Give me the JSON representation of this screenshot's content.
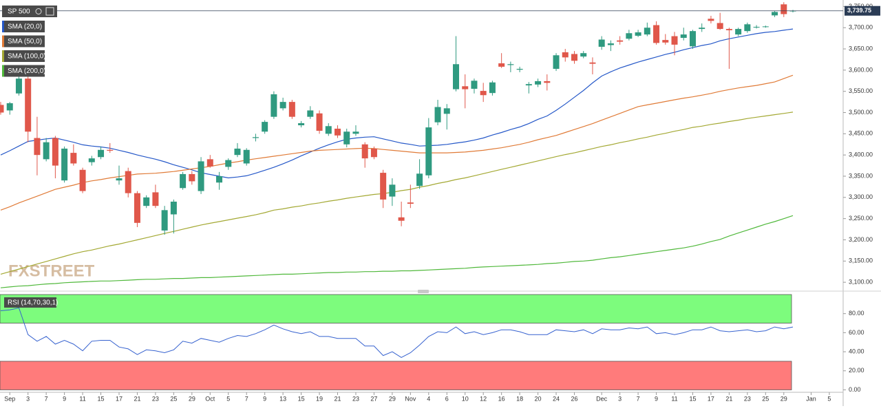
{
  "chart_data": [
    {
      "type": "candlestick",
      "title": "SP 500",
      "watermark": "FXSTREET",
      "up_color": "#2f9a80",
      "down_color": "#e0574a",
      "categories": [
        null,
        "Sep",
        null,
        "3",
        null,
        "7",
        null,
        "9",
        null,
        "11",
        null,
        "15",
        null,
        "17",
        null,
        "21",
        null,
        "23",
        null,
        "25",
        null,
        "29",
        null,
        "Oct",
        null,
        "5",
        null,
        "7",
        null,
        "9",
        null,
        "13",
        null,
        "15",
        null,
        "19",
        null,
        "21",
        null,
        "23",
        null,
        "27",
        null,
        "29",
        null,
        "Nov",
        null,
        "4",
        null,
        "6",
        null,
        "10",
        null,
        "12",
        null,
        "16",
        null,
        "18",
        null,
        "20",
        null,
        "24",
        null,
        "26",
        null,
        null,
        "Dec",
        null,
        "3",
        null,
        "7",
        null,
        "9",
        null,
        "11",
        null,
        "15",
        null,
        "17",
        null,
        "21",
        null,
        "23",
        null,
        "25",
        null,
        "29",
        null,
        null,
        "Jan",
        null,
        "5"
      ],
      "open": [
        3518,
        3505,
        3545,
        3580,
        3440,
        3390,
        3440,
        3340,
        3405,
        3365,
        3383,
        3395,
        3412,
        3340,
        3362,
        3310,
        3280,
        3312,
        3222,
        3260,
        3322,
        3355,
        3315,
        3390,
        3335,
        3372,
        3400,
        3380,
        3440,
        3455,
        3490,
        3510,
        3525,
        3470,
        3490,
        3498,
        3450,
        3462,
        3425,
        3450,
        3425,
        3415,
        3358,
        3302,
        3253,
        3288,
        3327,
        3352,
        3477,
        3497,
        3555,
        3562,
        3556,
        3551,
        3546,
        3616,
        3612,
        3601,
        3564,
        3566,
        3574,
        3603,
        3642,
        3638,
        3632,
        3618,
        3655,
        3659,
        3670,
        3674,
        3681,
        3684,
        3706,
        3671,
        3680,
        3676,
        3656,
        3697,
        3721,
        3711,
        3697,
        3684,
        3692,
        3701,
        3702,
        3729,
        3755,
        3739,
        null,
        null,
        null,
        null
      ],
      "high": [
        3525,
        3525,
        3588,
        3590,
        3490,
        3440,
        3445,
        3420,
        3425,
        3370,
        3398,
        3420,
        3428,
        3375,
        3370,
        3315,
        3305,
        3330,
        3280,
        3295,
        3360,
        3362,
        3395,
        3400,
        3360,
        3392,
        3428,
        3416,
        3450,
        3482,
        3550,
        3535,
        3530,
        3480,
        3515,
        3505,
        3475,
        3470,
        3462,
        3470,
        3430,
        3420,
        3365,
        3345,
        3290,
        3330,
        3390,
        3487,
        3530,
        3520,
        3680,
        3590,
        3580,
        3570,
        3575,
        3640,
        3620,
        3608,
        3572,
        3580,
        3590,
        3640,
        3650,
        3645,
        3645,
        3630,
        3680,
        3670,
        3680,
        3695,
        3695,
        3712,
        3715,
        3685,
        3690,
        3700,
        3695,
        3710,
        3728,
        3735,
        3700,
        3700,
        3712,
        3706,
        3705,
        3740,
        3760,
        3742,
        null,
        null,
        null,
        null
      ],
      "low": [
        3495,
        3495,
        3540,
        3430,
        3352,
        3385,
        3345,
        3335,
        3375,
        3310,
        3375,
        3390,
        3405,
        3330,
        3300,
        3230,
        3275,
        3275,
        3212,
        3215,
        3318,
        3330,
        3308,
        3370,
        3318,
        3365,
        3395,
        3375,
        3432,
        3450,
        3485,
        3505,
        3485,
        3465,
        3485,
        3450,
        3445,
        3440,
        3418,
        3445,
        3370,
        3390,
        3275,
        3280,
        3232,
        3275,
        3320,
        3345,
        3470,
        3460,
        3550,
        3510,
        3545,
        3525,
        3540,
        3605,
        3595,
        3595,
        3545,
        3560,
        3552,
        3598,
        3620,
        3615,
        3628,
        3590,
        3648,
        3645,
        3660,
        3670,
        3678,
        3680,
        3660,
        3660,
        3635,
        3670,
        3650,
        3690,
        3710,
        3695,
        3603,
        3680,
        3688,
        3698,
        3700,
        3725,
        3725,
        3736,
        null,
        null,
        null,
        null
      ],
      "close": [
        3500,
        3522,
        3580,
        3455,
        3400,
        3430,
        3375,
        3415,
        3380,
        3315,
        3392,
        3412,
        3410,
        3345,
        3310,
        3240,
        3300,
        3280,
        3270,
        3290,
        3355,
        3338,
        3385,
        3373,
        3350,
        3388,
        3415,
        3412,
        3442,
        3478,
        3543,
        3525,
        3490,
        3475,
        3505,
        3457,
        3468,
        3446,
        3455,
        3455,
        3392,
        3395,
        3295,
        3330,
        3245,
        3285,
        3356,
        3465,
        3513,
        3510,
        3614,
        3555,
        3575,
        3541,
        3571,
        3608,
        3614,
        3603,
        3567,
        3574,
        3570,
        3635,
        3630,
        3622,
        3640,
        3615,
        3672,
        3663,
        3667,
        3687,
        3689,
        3700,
        3664,
        3665,
        3660,
        3684,
        3692,
        3700,
        3716,
        3697,
        3694,
        3697,
        3708,
        3702,
        3703,
        3737,
        3732,
        3740,
        null,
        null,
        null,
        null
      ],
      "series": [
        {
          "name": "SMA (20,0)",
          "color": "#2457c8",
          "values": [
            3400,
            3410,
            3421,
            3432,
            3435,
            3438,
            3440,
            3435,
            3430,
            3424,
            3421,
            3419,
            3416,
            3411,
            3406,
            3400,
            3395,
            3390,
            3384,
            3377,
            3371,
            3365,
            3358,
            3354,
            3350,
            3346,
            3348,
            3351,
            3357,
            3364,
            3371,
            3379,
            3388,
            3398,
            3407,
            3416,
            3424,
            3431,
            3437,
            3440,
            3442,
            3443,
            3438,
            3433,
            3428,
            3425,
            3421,
            3422,
            3423,
            3425,
            3428,
            3431,
            3435,
            3440,
            3447,
            3453,
            3460,
            3466,
            3474,
            3484,
            3492,
            3505,
            3520,
            3536,
            3552,
            3570,
            3586,
            3596,
            3605,
            3612,
            3619,
            3625,
            3631,
            3637,
            3642,
            3648,
            3653,
            3658,
            3662,
            3669,
            3674,
            3678,
            3682,
            3686,
            3689,
            3691,
            3694,
            3697,
            null,
            null,
            null,
            null
          ]
        },
        {
          "name": "SMA (50,0)",
          "color": "#e07a36",
          "values": [
            3270,
            3278,
            3287,
            3295,
            3303,
            3311,
            3319,
            3324,
            3329,
            3335,
            3339,
            3342,
            3346,
            3349,
            3352,
            3355,
            3356,
            3357,
            3359,
            3361,
            3364,
            3367,
            3370,
            3373,
            3377,
            3381,
            3384,
            3388,
            3391,
            3394,
            3397,
            3400,
            3403,
            3406,
            3409,
            3411,
            3412,
            3413,
            3414,
            3415,
            3416,
            3415,
            3413,
            3411,
            3409,
            3407,
            3405,
            3405,
            3405,
            3405,
            3406,
            3407,
            3409,
            3411,
            3414,
            3417,
            3421,
            3425,
            3430,
            3436,
            3441,
            3446,
            3453,
            3460,
            3467,
            3474,
            3482,
            3490,
            3498,
            3506,
            3514,
            3518,
            3522,
            3526,
            3530,
            3534,
            3537,
            3541,
            3545,
            3550,
            3554,
            3558,
            3561,
            3564,
            3568,
            3572,
            3580,
            3588,
            null,
            null,
            null,
            null
          ]
        },
        {
          "name": "SMA (100,0)",
          "color": "#a3a832",
          "values": [
            3119,
            3125,
            3131,
            3137,
            3143,
            3149,
            3155,
            3161,
            3167,
            3172,
            3176,
            3181,
            3186,
            3190,
            3195,
            3200,
            3205,
            3210,
            3215,
            3220,
            3225,
            3230,
            3235,
            3239,
            3243,
            3247,
            3251,
            3255,
            3259,
            3264,
            3270,
            3273,
            3277,
            3280,
            3284,
            3287,
            3291,
            3294,
            3298,
            3301,
            3304,
            3307,
            3309,
            3312,
            3316,
            3319,
            3324,
            3328,
            3333,
            3337,
            3342,
            3346,
            3351,
            3356,
            3361,
            3366,
            3371,
            3376,
            3381,
            3386,
            3391,
            3396,
            3401,
            3405,
            3410,
            3415,
            3420,
            3424,
            3429,
            3433,
            3438,
            3442,
            3447,
            3451,
            3456,
            3460,
            3465,
            3468,
            3472,
            3475,
            3479,
            3482,
            3486,
            3489,
            3492,
            3495,
            3498,
            3501,
            null,
            null,
            null,
            null
          ]
        },
        {
          "name": "SMA (200,0)",
          "color": "#4fb83a",
          "values": [
            3087,
            3089,
            3091,
            3092,
            3094,
            3096,
            3097,
            3099,
            3100,
            3101,
            3102,
            3103,
            3103,
            3104,
            3105,
            3106,
            3107,
            3107,
            3108,
            3109,
            3109,
            3110,
            3111,
            3111,
            3112,
            3113,
            3114,
            3115,
            3116,
            3117,
            3118,
            3119,
            3119,
            3120,
            3121,
            3122,
            3123,
            3123,
            3124,
            3124,
            3125,
            3125,
            3126,
            3126,
            3127,
            3127,
            3128,
            3129,
            3130,
            3131,
            3132,
            3133,
            3135,
            3136,
            3137,
            3138,
            3139,
            3140,
            3141,
            3142,
            3144,
            3145,
            3147,
            3149,
            3150,
            3152,
            3155,
            3158,
            3160,
            3163,
            3166,
            3169,
            3172,
            3175,
            3178,
            3181,
            3185,
            3190,
            3196,
            3201,
            3209,
            3216,
            3223,
            3230,
            3237,
            3243,
            3250,
            3257,
            null,
            null,
            null,
            null
          ]
        }
      ],
      "ylim": [
        3084,
        3762
      ],
      "yticks": [
        {
          "value": 3100,
          "label": "3,100.00"
        },
        {
          "value": 3150,
          "label": "3,150.00"
        },
        {
          "value": 3200,
          "label": "3,200.00"
        },
        {
          "value": 3250,
          "label": "3,250.00"
        },
        {
          "value": 3300,
          "label": "3,300.00"
        },
        {
          "value": 3350,
          "label": "3,350.00"
        },
        {
          "value": 3400,
          "label": "3,400.00"
        },
        {
          "value": 3450,
          "label": "3,450.00"
        },
        {
          "value": 3500,
          "label": "3,500.00"
        },
        {
          "value": 3550,
          "label": "3,550.00"
        },
        {
          "value": 3600,
          "label": "3,600.00"
        },
        {
          "value": 3650,
          "label": "3,650.00"
        },
        {
          "value": 3700,
          "label": "3,700.00"
        },
        {
          "value": 3750,
          "label": "3,750.00"
        }
      ],
      "last_price": {
        "value": 3739.75,
        "label": "3,739.75"
      }
    },
    {
      "type": "line",
      "title": "RSI (14,70,30,1)",
      "series": [
        {
          "color": "#3561cf",
          "values": [
            83,
            84,
            86,
            58,
            51,
            56,
            48,
            52,
            48,
            41,
            51,
            52,
            52,
            45,
            43,
            37,
            42,
            41,
            39,
            42,
            51,
            49,
            54,
            52,
            50,
            54,
            57,
            56,
            59,
            63,
            68,
            64,
            61,
            59,
            61,
            56,
            56,
            54,
            54,
            54,
            46,
            46,
            36,
            40,
            34,
            39,
            47,
            56,
            61,
            60,
            66,
            59,
            61,
            58,
            60,
            63,
            63,
            61,
            58,
            58,
            58,
            63,
            62,
            61,
            63,
            59,
            64,
            63,
            63,
            65,
            64,
            66,
            59,
            60,
            58,
            60,
            63,
            63,
            66,
            62,
            61,
            62,
            63,
            61,
            62,
            66,
            64,
            66,
            null,
            null,
            null,
            null
          ]
        }
      ],
      "bands": [
        {
          "from": 70,
          "to": 100,
          "color": "#7dfc7d"
        },
        {
          "from": 0,
          "to": 30,
          "color": "#ff7b7b"
        }
      ],
      "ylim": [
        -4,
        100
      ],
      "yticks": [
        {
          "value": 0,
          "label": "0.00"
        },
        {
          "value": 20,
          "label": "20.00"
        },
        {
          "value": 40,
          "label": "40.00"
        },
        {
          "value": 60,
          "label": "60.00"
        },
        {
          "value": 80,
          "label": "80.00"
        }
      ]
    }
  ]
}
